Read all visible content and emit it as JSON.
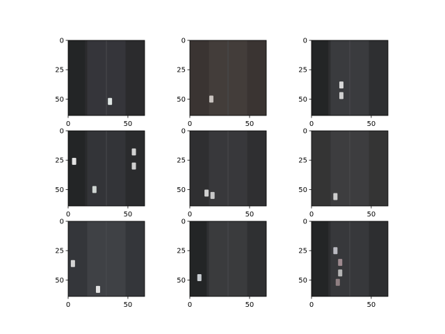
{
  "figure": {
    "grid": {
      "rows": 3,
      "cols": 3
    },
    "axis_range": {
      "x": [
        0,
        64
      ],
      "y": [
        0,
        64
      ]
    },
    "x_ticks": [
      "0",
      "50"
    ],
    "y_ticks": [
      "0",
      "25",
      "50"
    ],
    "x_tick_values": [
      0,
      50
    ],
    "y_tick_values": [
      0,
      25,
      50
    ],
    "panels": [
      {
        "id": "p1",
        "base": "#2b2b2d",
        "road": "#35353a",
        "has_trees_left": true,
        "cars": [
          {
            "x": 35,
            "y": 52,
            "c": "#dfe6e4"
          }
        ]
      },
      {
        "id": "p2",
        "base": "#3a3432",
        "road": "#433d3a",
        "has_trees_left": false,
        "cars": [
          {
            "x": 18,
            "y": 50,
            "c": "#c9c3bf"
          }
        ]
      },
      {
        "id": "p3",
        "base": "#2e2f31",
        "road": "#3a3b3e",
        "has_trees_left": true,
        "cars": [
          {
            "x": 25,
            "y": 38,
            "c": "#d7d7d7"
          },
          {
            "x": 25,
            "y": 47,
            "c": "#cfcfcf"
          }
        ]
      },
      {
        "id": "p4",
        "base": "#2a2b2d",
        "road": "#333438",
        "has_trees_left": true,
        "cars": [
          {
            "x": 5,
            "y": 26,
            "c": "#e3e3e3"
          },
          {
            "x": 22,
            "y": 50,
            "c": "#cfd5d2"
          },
          {
            "x": 55,
            "y": 18,
            "c": "#d2d2d2"
          },
          {
            "x": 55,
            "y": 30,
            "c": "#cfcfcf"
          }
        ]
      },
      {
        "id": "p5",
        "base": "#2f2f31",
        "road": "#38383b",
        "has_trees_left": false,
        "cars": [
          {
            "x": 14,
            "y": 53,
            "c": "#d0d0d0"
          },
          {
            "x": 19,
            "y": 55,
            "c": "#c8c8c8"
          }
        ]
      },
      {
        "id": "p6",
        "base": "#343434",
        "road": "#3d3d3f",
        "has_trees_left": false,
        "cars": [
          {
            "x": 20,
            "y": 56,
            "c": "#cdcdcd"
          }
        ]
      },
      {
        "id": "p7",
        "base": "#34363a",
        "road": "#3f4145",
        "has_trees_left": false,
        "cars": [
          {
            "x": 4,
            "y": 36,
            "c": "#d4d4d4"
          },
          {
            "x": 25,
            "y": 58,
            "c": "#e2e2e2"
          }
        ]
      },
      {
        "id": "p8",
        "base": "#2f3032",
        "road": "#3a3b3d",
        "has_trees_left": true,
        "cars": [
          {
            "x": 8,
            "y": 48,
            "c": "#c7ccd0"
          }
        ]
      },
      {
        "id": "p9",
        "base": "#2d2e30",
        "road": "#37383b",
        "has_trees_left": true,
        "cars": [
          {
            "x": 20,
            "y": 25,
            "c": "#b9b9c0"
          },
          {
            "x": 24,
            "y": 35,
            "c": "#9e8a8f"
          },
          {
            "x": 24,
            "y": 44,
            "c": "#b5b5b5"
          },
          {
            "x": 22,
            "y": 52,
            "c": "#8f7f82"
          }
        ]
      }
    ]
  }
}
